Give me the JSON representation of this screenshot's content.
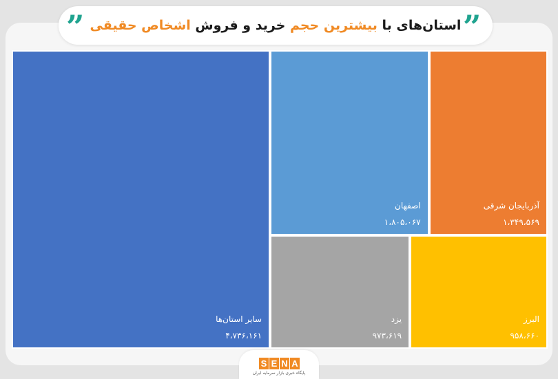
{
  "header": {
    "title_part1": "استان‌های با ",
    "title_highlight1": "بیشترین حجم",
    "title_part2": " خرید و فروش ",
    "title_highlight2": "اشخاص حقیقی",
    "quote_glyph": "”",
    "accent_color": "#1fa38f",
    "highlight_color": "#f08a24"
  },
  "chart_data": {
    "type": "treemap",
    "items": [
      {
        "name": "سایر استان‌ها",
        "value_label": "۴،۷۳۶،۱۶۱",
        "value": 4736161,
        "color": "#4472c4"
      },
      {
        "name": "اصفهان",
        "value_label": "۱،۸۰۵،۰۶۷",
        "value": 1805067,
        "color": "#5b9bd5"
      },
      {
        "name": "آذربایجان شرقی",
        "value_label": "۱،۳۴۹،۵۶۹",
        "value": 1349569,
        "color": "#ed7d31"
      },
      {
        "name": "یزد",
        "value_label": "۹۷۳،۶۱۹",
        "value": 973619,
        "color": "#a5a5a5"
      },
      {
        "name": "البرز",
        "value_label": "۹۵۸،۶۶۰",
        "value": 958660,
        "color": "#ffc000"
      }
    ]
  },
  "footer": {
    "logo_letters": [
      "S",
      "E",
      "N",
      "A"
    ],
    "logo_subtitle": "پایگاه خبری بازار سرمایه ایران",
    "logo_color": "#f08a24"
  }
}
